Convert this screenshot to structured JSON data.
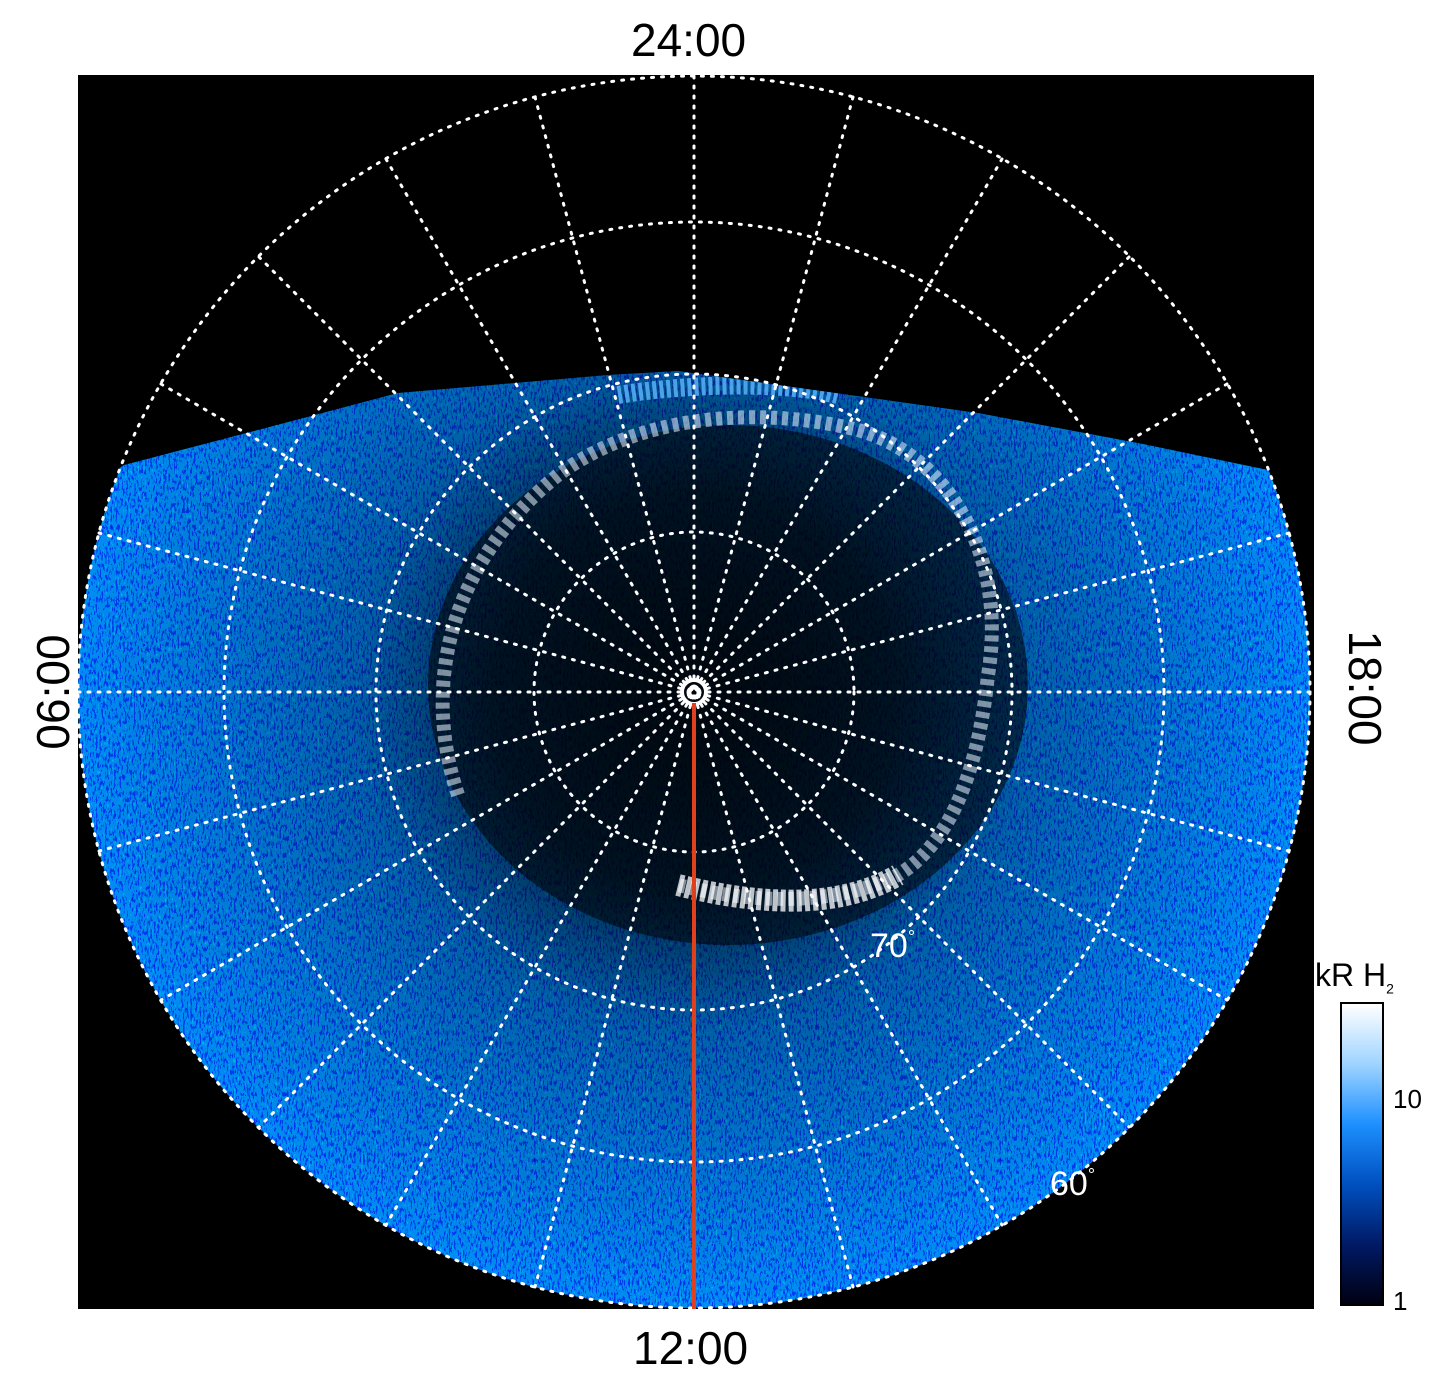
{
  "axis_labels": {
    "top": "24:00",
    "bottom": "12:00",
    "left": "06:00",
    "right": "18:00"
  },
  "latitude_labels": {
    "inner": "70",
    "outer": "60",
    "degree_mark": "°"
  },
  "colorbar": {
    "title": "kR H",
    "subscript": "2",
    "ticks": [
      "10",
      "1"
    ],
    "colors": [
      "#000012",
      "#001a66",
      "#0050c0",
      "#1e90ff",
      "#9fd4ff",
      "#ffffff"
    ]
  },
  "colors": {
    "meridian_line": "#e0401c",
    "grid": "#ffffff",
    "background": "#000000"
  }
}
